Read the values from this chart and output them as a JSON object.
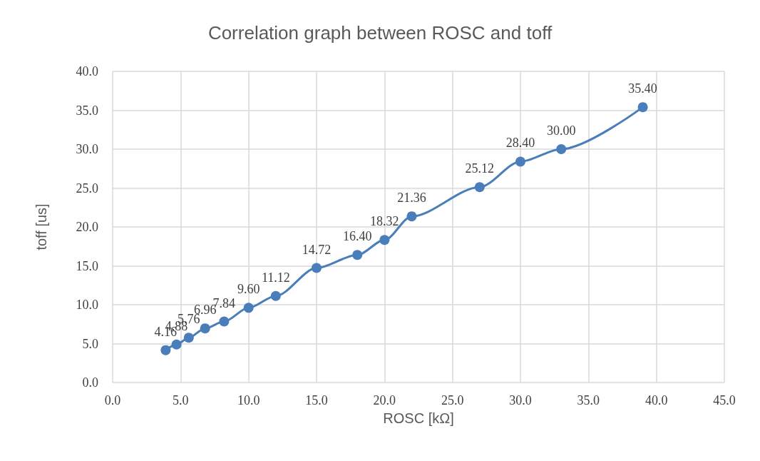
{
  "chart_data": {
    "type": "line",
    "title": "Correlation graph between ROSC and toff",
    "xlabel": "ROSC [kΩ]",
    "ylabel": "toff [us]",
    "x": [
      3.9,
      4.7,
      5.6,
      6.8,
      8.2,
      10,
      12,
      15,
      18,
      20,
      22,
      27,
      30,
      33,
      39
    ],
    "series": [
      {
        "color": "#4a7ebb",
        "values": [
          4.16,
          4.88,
          5.76,
          6.96,
          7.84,
          9.6,
          11.12,
          14.72,
          16.4,
          18.32,
          21.36,
          25.12,
          28.4,
          30.0,
          35.4
        ],
        "value_labels": [
          "4.16",
          "4.88",
          "5.76",
          "6.96",
          "7.84",
          "9.60",
          "11.12",
          "14.72",
          "16.40",
          "18.32",
          "21.36",
          "25.12",
          "28.40",
          "30.00",
          "35.40"
        ]
      }
    ],
    "xlim": [
      0,
      45
    ],
    "xticks": [
      {
        "value": 0,
        "label": "0.0"
      },
      {
        "value": 5,
        "label": "5.0"
      },
      {
        "value": 10,
        "label": "10.0"
      },
      {
        "value": 15,
        "label": "15.0"
      },
      {
        "value": 20,
        "label": "20.0"
      },
      {
        "value": 25,
        "label": "25.0"
      },
      {
        "value": 30,
        "label": "30.0"
      },
      {
        "value": 35,
        "label": "35.0"
      },
      {
        "value": 40,
        "label": "40.0"
      },
      {
        "value": 45,
        "label": "45.0"
      }
    ],
    "ylim": [
      0,
      40
    ],
    "yticks": [
      {
        "value": 0,
        "label": "0.0"
      },
      {
        "value": 5,
        "label": "5.0"
      },
      {
        "value": 10,
        "label": "10.0"
      },
      {
        "value": 15,
        "label": "15.0"
      },
      {
        "value": 20,
        "label": "20.0"
      },
      {
        "value": 25,
        "label": "25.0"
      },
      {
        "value": 30,
        "label": "30.0"
      },
      {
        "value": 35,
        "label": "35.0"
      },
      {
        "value": 40,
        "label": "40.0"
      }
    ],
    "grid": true,
    "marker": "circle",
    "line_style": "solid"
  }
}
